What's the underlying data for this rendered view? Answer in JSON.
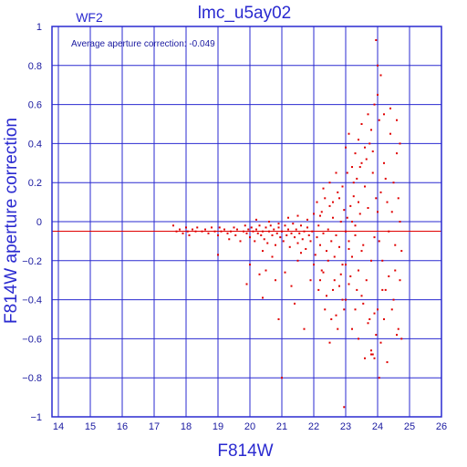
{
  "chart_data": {
    "type": "scatter",
    "title": "lmc_u5ay02",
    "panel_label": "WF2",
    "xlabel": "F814W",
    "ylabel": "F814W aperture correction",
    "annotation": "Average aperture correction:  -0.049",
    "average": -0.049,
    "xlim": [
      13.8,
      26.0
    ],
    "ylim": [
      -1.0,
      1.0
    ],
    "xticks": [
      "14",
      "15",
      "16",
      "17",
      "18",
      "19",
      "20",
      "21",
      "22",
      "23",
      "24",
      "25",
      "26"
    ],
    "yticks": [
      "−1",
      "−0.8",
      "−0.6",
      "−0.4",
      "−0.2",
      "0",
      "0.2",
      "0.4",
      "0.6",
      "0.8",
      "1"
    ],
    "ytick_values": [
      -1,
      -0.8,
      -0.6,
      -0.4,
      -0.2,
      0,
      0.2,
      0.4,
      0.6,
      0.8,
      1
    ],
    "grid": true,
    "colors": {
      "axes": "#2a2ad0",
      "points": "#e00000",
      "average_line": "#e00000"
    },
    "points": [
      [
        17.6,
        -0.02
      ],
      [
        17.7,
        -0.05
      ],
      [
        17.8,
        -0.04
      ],
      [
        17.9,
        -0.06
      ],
      [
        18.0,
        -0.03
      ],
      [
        18.05,
        -0.05
      ],
      [
        18.1,
        -0.07
      ],
      [
        18.2,
        -0.04
      ],
      [
        18.3,
        -0.05
      ],
      [
        18.35,
        -0.03
      ],
      [
        18.5,
        -0.05
      ],
      [
        18.6,
        -0.04
      ],
      [
        18.7,
        -0.06
      ],
      [
        18.8,
        -0.03
      ],
      [
        18.9,
        -0.05
      ],
      [
        19.0,
        -0.07
      ],
      [
        19.05,
        -0.03
      ],
      [
        19.1,
        -0.05
      ],
      [
        19.2,
        -0.04
      ],
      [
        19.3,
        -0.06
      ],
      [
        19.35,
        -0.09
      ],
      [
        19.4,
        -0.05
      ],
      [
        19.5,
        -0.03
      ],
      [
        19.55,
        -0.07
      ],
      [
        19.6,
        -0.04
      ],
      [
        19.7,
        -0.1
      ],
      [
        19.8,
        -0.05
      ],
      [
        19.85,
        -0.02
      ],
      [
        19.9,
        -0.06
      ],
      [
        19.95,
        -0.04
      ],
      [
        20.0,
        -0.08
      ],
      [
        20.05,
        -0.03
      ],
      [
        20.1,
        -0.05
      ],
      [
        20.15,
        -0.1
      ],
      [
        20.2,
        -0.04
      ],
      [
        20.25,
        -0.06
      ],
      [
        20.3,
        -0.02
      ],
      [
        20.35,
        -0.07
      ],
      [
        20.4,
        -0.05
      ],
      [
        20.45,
        -0.09
      ],
      [
        20.5,
        -0.03
      ],
      [
        20.55,
        -0.11
      ],
      [
        20.6,
        -0.05
      ],
      [
        20.65,
        -0.02
      ],
      [
        20.7,
        -0.07
      ],
      [
        20.75,
        -0.04
      ],
      [
        20.8,
        -0.12
      ],
      [
        20.85,
        -0.06
      ],
      [
        20.9,
        -0.03
      ],
      [
        20.95,
        -0.08
      ],
      [
        21.0,
        -0.05
      ],
      [
        21.05,
        -0.1
      ],
      [
        21.1,
        -0.02
      ],
      [
        21.15,
        -0.07
      ],
      [
        21.2,
        -0.04
      ],
      [
        21.25,
        -0.13
      ],
      [
        21.3,
        -0.06
      ],
      [
        21.35,
        -0.01
      ],
      [
        21.4,
        -0.08
      ],
      [
        21.45,
        -0.04
      ],
      [
        21.5,
        -0.11
      ],
      [
        21.55,
        -0.06
      ],
      [
        21.6,
        -0.02
      ],
      [
        21.65,
        -0.09
      ],
      [
        21.7,
        -0.05
      ],
      [
        21.75,
        -0.14
      ],
      [
        21.8,
        -0.03
      ],
      [
        21.85,
        -0.07
      ],
      [
        21.9,
        -0.1
      ],
      [
        21.95,
        -0.05
      ],
      [
        20.2,
        0.01
      ],
      [
        20.6,
        0.0
      ],
      [
        20.9,
        -0.01
      ],
      [
        21.2,
        0.02
      ],
      [
        21.5,
        0.03
      ],
      [
        21.8,
        0.01
      ],
      [
        22.0,
        0.04
      ],
      [
        21.6,
        -0.16
      ],
      [
        20.4,
        -0.15
      ],
      [
        20.7,
        -0.18
      ],
      [
        19.0,
        -0.17
      ],
      [
        20.0,
        -0.22
      ],
      [
        20.3,
        -0.27
      ],
      [
        20.5,
        -0.25
      ],
      [
        20.8,
        -0.3
      ],
      [
        20.9,
        -0.5
      ],
      [
        21.0,
        -0.8
      ],
      [
        21.1,
        -0.26
      ],
      [
        21.3,
        -0.33
      ],
      [
        21.4,
        -0.42
      ],
      [
        21.5,
        -0.2
      ],
      [
        21.7,
        -0.55
      ],
      [
        21.9,
        -0.3
      ],
      [
        19.9,
        -0.32
      ],
      [
        20.4,
        -0.39
      ],
      [
        22.0,
        -0.22
      ],
      [
        22.1,
        -0.08
      ],
      [
        22.15,
        -0.02
      ],
      [
        22.2,
        -0.12
      ],
      [
        22.25,
        0.05
      ],
      [
        22.3,
        -0.06
      ],
      [
        22.35,
        0.12
      ],
      [
        22.4,
        -0.15
      ],
      [
        22.45,
        -0.04
      ],
      [
        22.5,
        0.08
      ],
      [
        22.55,
        -0.1
      ],
      [
        22.6,
        0.02
      ],
      [
        22.65,
        -0.18
      ],
      [
        22.7,
        -0.07
      ],
      [
        22.75,
        0.15
      ],
      [
        22.8,
        -0.13
      ],
      [
        22.85,
        0.0
      ],
      [
        22.9,
        -0.22
      ],
      [
        22.95,
        0.06
      ],
      [
        22.2,
        -0.3
      ],
      [
        22.3,
        -0.26
      ],
      [
        22.4,
        -0.38
      ],
      [
        22.5,
        -0.62
      ],
      [
        22.6,
        -0.35
      ],
      [
        22.7,
        -0.48
      ],
      [
        22.8,
        -0.33
      ],
      [
        22.9,
        -0.4
      ],
      [
        22.1,
        0.1
      ],
      [
        22.3,
        0.17
      ],
      [
        22.5,
        0.2
      ],
      [
        22.7,
        0.25
      ],
      [
        22.9,
        0.18
      ],
      [
        22.2,
        0.03
      ],
      [
        22.6,
        0.1
      ],
      [
        22.8,
        0.12
      ],
      [
        23.0,
        -0.05
      ],
      [
        23.05,
        0.02
      ],
      [
        23.1,
        -0.1
      ],
      [
        23.15,
        0.08
      ],
      [
        23.2,
        -0.18
      ],
      [
        23.25,
        0.13
      ],
      [
        23.3,
        -0.02
      ],
      [
        23.35,
        0.22
      ],
      [
        23.4,
        -0.25
      ],
      [
        23.45,
        0.04
      ],
      [
        23.5,
        0.3
      ],
      [
        23.55,
        -0.12
      ],
      [
        23.6,
        0.18
      ],
      [
        23.65,
        -0.3
      ],
      [
        23.7,
        0.07
      ],
      [
        23.75,
        0.4
      ],
      [
        23.8,
        -0.2
      ],
      [
        23.85,
        0.25
      ],
      [
        23.9,
        -0.08
      ],
      [
        23.95,
        0.12
      ],
      [
        23.0,
        0.38
      ],
      [
        23.1,
        0.45
      ],
      [
        23.2,
        0.28
      ],
      [
        23.3,
        0.35
      ],
      [
        23.4,
        0.42
      ],
      [
        23.5,
        0.5
      ],
      [
        23.6,
        0.38
      ],
      [
        23.7,
        0.55
      ],
      [
        23.8,
        0.47
      ],
      [
        23.9,
        0.6
      ],
      [
        23.0,
        -0.4
      ],
      [
        23.1,
        -0.32
      ],
      [
        23.2,
        -0.55
      ],
      [
        23.3,
        -0.45
      ],
      [
        23.4,
        -0.6
      ],
      [
        23.5,
        -0.38
      ],
      [
        23.6,
        -0.7
      ],
      [
        23.7,
        -0.52
      ],
      [
        23.8,
        -0.66
      ],
      [
        23.9,
        -0.47
      ],
      [
        22.95,
        -0.95
      ],
      [
        23.8,
        -0.68
      ],
      [
        23.85,
        -0.68
      ],
      [
        23.9,
        -0.7
      ],
      [
        23.0,
        -0.22
      ],
      [
        23.1,
        -0.14
      ],
      [
        23.2,
        0.0
      ],
      [
        23.3,
        -0.07
      ],
      [
        23.4,
        0.1
      ],
      [
        23.5,
        -0.15
      ],
      [
        24.0,
        0.05
      ],
      [
        24.05,
        -0.1
      ],
      [
        24.1,
        0.15
      ],
      [
        24.15,
        -0.2
      ],
      [
        24.2,
        0.3
      ],
      [
        24.25,
        -0.35
      ],
      [
        24.3,
        0.1
      ],
      [
        24.35,
        -0.05
      ],
      [
        24.4,
        0.45
      ],
      [
        24.45,
        -0.45
      ],
      [
        24.5,
        0.2
      ],
      [
        24.55,
        -0.25
      ],
      [
        24.6,
        0.35
      ],
      [
        24.65,
        -0.55
      ],
      [
        24.7,
        0.0
      ],
      [
        24.75,
        -0.15
      ],
      [
        24.0,
        0.8
      ],
      [
        24.1,
        0.75
      ],
      [
        24.0,
        0.65
      ],
      [
        23.95,
        0.93
      ],
      [
        24.05,
        0.52
      ],
      [
        24.2,
        0.55
      ],
      [
        24.4,
        0.58
      ],
      [
        24.6,
        0.52
      ],
      [
        24.7,
        0.4
      ],
      [
        24.0,
        -0.45
      ],
      [
        24.1,
        -0.62
      ],
      [
        24.2,
        -0.5
      ],
      [
        24.3,
        -0.72
      ],
      [
        24.5,
        -0.4
      ],
      [
        24.6,
        -0.58
      ],
      [
        24.7,
        -0.3
      ],
      [
        24.05,
        -0.8
      ],
      [
        24.15,
        -0.35
      ],
      [
        24.35,
        -0.28
      ],
      [
        24.55,
        -0.12
      ],
      [
        24.65,
        0.12
      ],
      [
        24.25,
        0.22
      ],
      [
        24.45,
        0.05
      ],
      [
        24.75,
        -0.6
      ],
      [
        23.05,
        0.25
      ],
      [
        23.25,
        0.2
      ],
      [
        23.45,
        0.28
      ],
      [
        23.65,
        0.32
      ],
      [
        23.85,
        0.36
      ],
      [
        23.15,
        -0.28
      ],
      [
        23.35,
        -0.35
      ],
      [
        23.55,
        -0.42
      ],
      [
        23.75,
        -0.5
      ],
      [
        23.95,
        -0.58
      ],
      [
        22.05,
        -0.17
      ],
      [
        22.25,
        -0.25
      ],
      [
        22.45,
        -0.2
      ],
      [
        22.65,
        -0.3
      ],
      [
        22.85,
        -0.27
      ],
      [
        22.35,
        -0.45
      ],
      [
        22.55,
        -0.5
      ],
      [
        22.75,
        -0.55
      ],
      [
        22.15,
        -0.35
      ],
      [
        22.95,
        -0.45
      ]
    ]
  }
}
